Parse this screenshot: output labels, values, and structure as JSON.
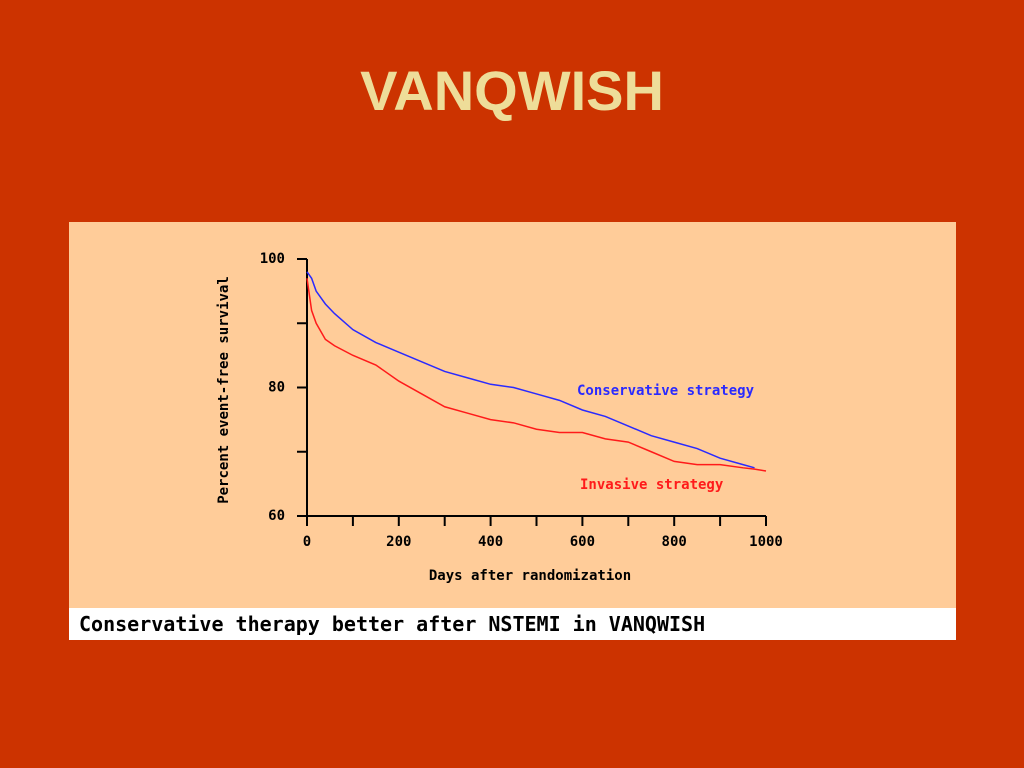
{
  "slide_title": "VANQWISH",
  "caption": "Conservative therapy better after NSTEMI in VANQWISH",
  "chart_data": {
    "type": "line",
    "x_label": "Days after randomization",
    "y_label": "Percent event-free survival",
    "x": [
      0,
      10,
      20,
      40,
      60,
      100,
      150,
      200,
      250,
      300,
      350,
      400,
      450,
      500,
      550,
      600,
      650,
      700,
      750,
      800,
      850,
      900,
      950,
      975,
      1000
    ],
    "series": [
      {
        "name": "Conservative strategy",
        "color": "#2a2aff",
        "values": [
          98,
          97,
          95,
          93,
          91.5,
          89,
          87,
          85.5,
          84,
          82.5,
          81.5,
          80.5,
          80,
          79,
          78,
          76.5,
          75.5,
          74,
          72.5,
          71.5,
          70.5,
          69,
          68,
          67.5,
          null
        ]
      },
      {
        "name": "Invasive strategy",
        "color": "#ff1a1a",
        "values": [
          97,
          92,
          90,
          87.5,
          86.5,
          85,
          83.5,
          81,
          79,
          77,
          76,
          75,
          74.5,
          73.5,
          73,
          73,
          72,
          71.5,
          70,
          68.5,
          68,
          68,
          67.5,
          67.3,
          67
        ]
      }
    ],
    "xlim": [
      0,
      1000
    ],
    "xticks": [
      0,
      200,
      400,
      600,
      800,
      1000
    ],
    "xminor_ticks": [
      100,
      300,
      500,
      700,
      900
    ],
    "ylim": [
      60,
      100
    ],
    "yticks": [
      60,
      80,
      100
    ],
    "yminor_ticks": [
      70,
      90
    ]
  }
}
